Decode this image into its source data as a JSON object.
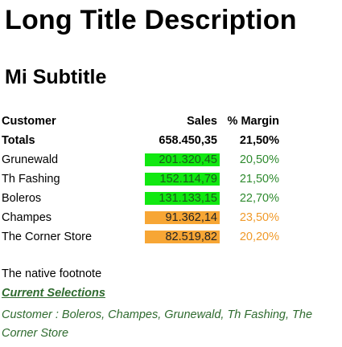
{
  "title": "Long Title Description",
  "subtitle": "Mi Subtitle",
  "table": {
    "headers": {
      "customer": "Customer",
      "sales": "Sales",
      "margin": "% Margin"
    },
    "totals": {
      "label": "Totals",
      "sales": "658.450,35",
      "margin": "21,50%"
    },
    "rows": [
      {
        "customer": "Grunewald",
        "sales": "201.320,45",
        "margin": "20,50%",
        "band": "green"
      },
      {
        "customer": "Th Fashing",
        "sales": "152.114,79",
        "margin": "21,50%",
        "band": "green"
      },
      {
        "customer": "Boleros",
        "sales": "131.133,15",
        "margin": "22,70%",
        "band": "green"
      },
      {
        "customer": "Champes",
        "sales": "91.362,14",
        "margin": "23,50%",
        "band": "orange"
      },
      {
        "customer": "The Corner Store",
        "sales": "82.519,82",
        "margin": "20,20%",
        "band": "orange"
      }
    ]
  },
  "colors": {
    "green_fill": "#11e811",
    "orange_fill": "#f7a635",
    "green_text": "#2e8a2e",
    "orange_text": "#f09a2a",
    "selection_text": "#2f6b2f"
  },
  "footnote": "The native footnote",
  "current_selections_label": "Current Selections",
  "current_selections_text": "Customer : Boleros, Champes, Grunewald, Th Fashing, The Corner Store"
}
